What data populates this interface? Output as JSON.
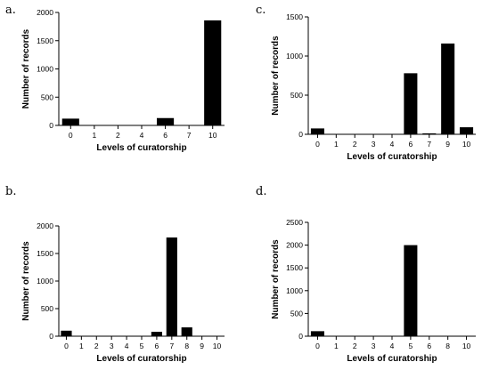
{
  "chart_data": [
    {
      "panel": "a.",
      "type": "bar",
      "categories": [
        "0",
        "1",
        "2",
        "4",
        "6",
        "7",
        "10"
      ],
      "values": [
        120,
        0,
        0,
        0,
        130,
        0,
        1860
      ],
      "xlabel": "Levels of curatorship",
      "ylabel": "Number of records",
      "ylim": [
        0,
        2000
      ],
      "yticks": [
        0,
        500,
        1000,
        1500,
        2000
      ]
    },
    {
      "panel": "c.",
      "type": "bar",
      "categories": [
        "0",
        "1",
        "2",
        "3",
        "4",
        "6",
        "7",
        "9",
        "10"
      ],
      "values": [
        75,
        0,
        0,
        0,
        0,
        780,
        12,
        1160,
        90
      ],
      "xlabel": "Levels of curatorship",
      "ylabel": "Number of records",
      "ylim": [
        0,
        1500
      ],
      "yticks": [
        0,
        500,
        1000,
        1500
      ]
    },
    {
      "panel": "b.",
      "type": "bar",
      "categories": [
        "0",
        "1",
        "2",
        "3",
        "4",
        "5",
        "6",
        "7",
        "8",
        "9",
        "10"
      ],
      "values": [
        100,
        0,
        0,
        0,
        0,
        0,
        80,
        1790,
        160,
        0,
        0
      ],
      "xlabel": "Levels of curatorship",
      "ylabel": "Number of records",
      "ylim": [
        0,
        2000
      ],
      "yticks": [
        0,
        500,
        1000,
        1500,
        2000
      ]
    },
    {
      "panel": "d.",
      "type": "bar",
      "categories": [
        "0",
        "1",
        "2",
        "3",
        "4",
        "5",
        "6",
        "8",
        "10"
      ],
      "values": [
        110,
        0,
        0,
        0,
        0,
        2000,
        0,
        0,
        0
      ],
      "xlabel": "Levels of curatorship",
      "ylabel": "Number of records",
      "ylim": [
        0,
        2500
      ],
      "yticks": [
        0,
        500,
        1000,
        1500,
        2000,
        2500
      ]
    }
  ]
}
